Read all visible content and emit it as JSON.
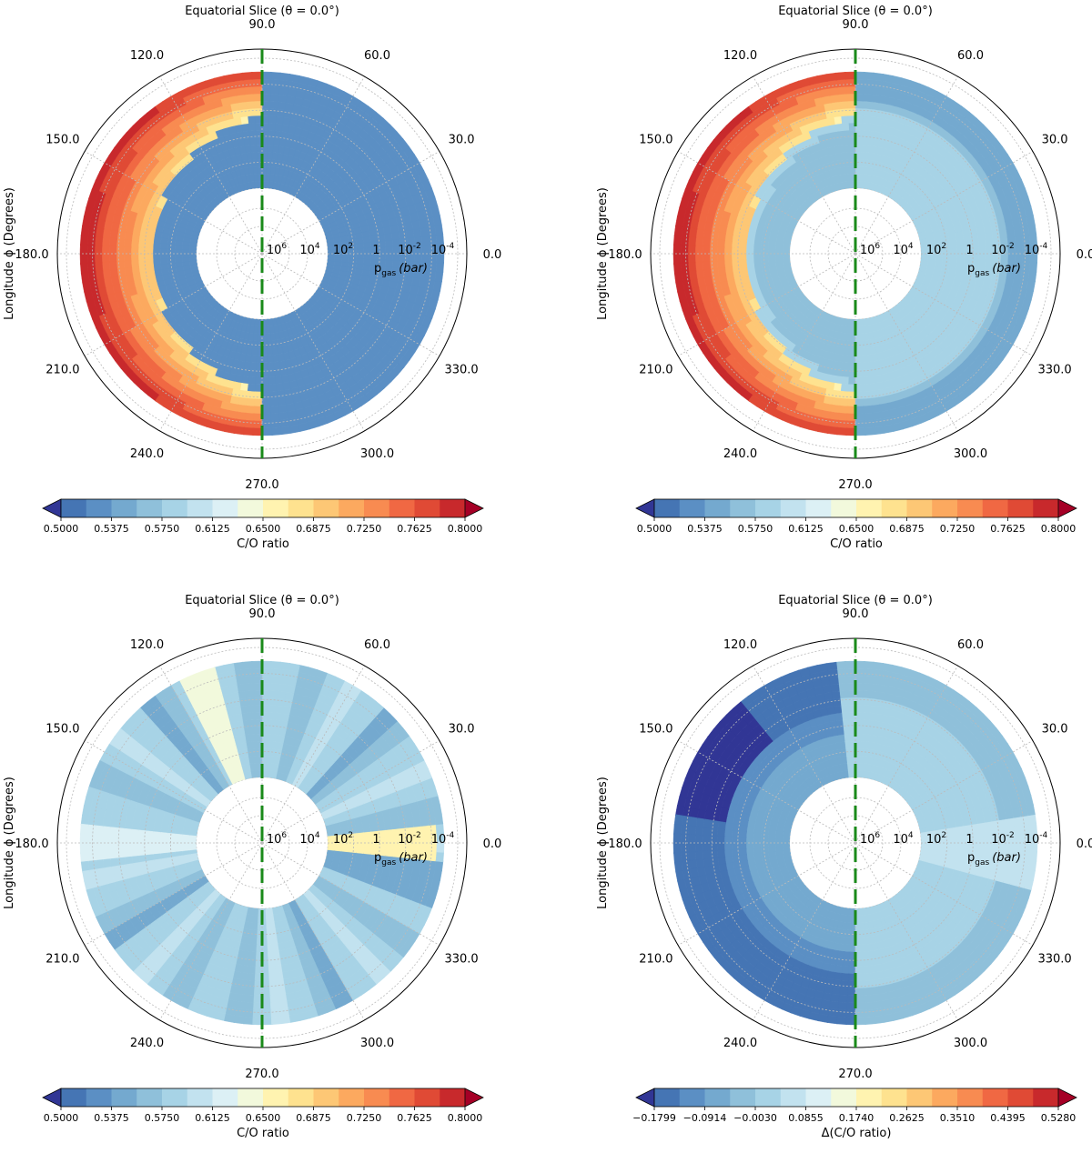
{
  "colors": {
    "palette": [
      "#313695",
      "#4575b4",
      "#5b8fc4",
      "#74a9cf",
      "#8fc0da",
      "#a7d3e6",
      "#c2e2ef",
      "#dcf0f5",
      "#f2f9dc",
      "#fff3b0",
      "#fee28f",
      "#fdc775",
      "#fca95f",
      "#f88b51",
      "#f06843",
      "#e04a35",
      "#c8292c",
      "#a50026"
    ],
    "meridian": "#1a8a1a"
  },
  "common": {
    "lon_ticks": [
      "0.0",
      "30.0",
      "60.0",
      "90.0",
      "120.0",
      "150.0",
      "180.0",
      "210.0",
      "240.0",
      "270.0",
      "300.0",
      "330.0"
    ],
    "pressure_ticks": [
      {
        "mant": "10",
        "exp": "6"
      },
      {
        "mant": "10",
        "exp": "4"
      },
      {
        "mant": "10",
        "exp": "2"
      },
      {
        "mant": "1",
        "exp": ""
      },
      {
        "mant": "10",
        "exp": "-2"
      },
      {
        "mant": "10",
        "exp": "-4"
      }
    ],
    "pressure_label_base": "p",
    "pressure_label_sub": "gas",
    "pressure_label_unit": "(bar)"
  },
  "panels": [
    {
      "title": "Equatorial Slice (θ = 0.0°)",
      "ylabel": "Longitude ϕ (Degrees)",
      "colorbar": {
        "ticks": [
          "0.5000",
          "0.5375",
          "0.5750",
          "0.6125",
          "0.6500",
          "0.6875",
          "0.7250",
          "0.7625",
          "0.8000"
        ],
        "label": "C/O ratio"
      },
      "chart_data": {
        "type": "polar contour",
        "title": "Equatorial Slice (θ = 0.0°)",
        "angular_axis": "Longitude ϕ (Degrees)",
        "radial_axis": "p_gas (bar)",
        "radial_range_log10_bar": [
          6,
          -4
        ],
        "colorbar_label": "C/O ratio",
        "colorbar_range": [
          0.5,
          0.8
        ],
        "regions": [
          {
            "lon_range": [
              90,
              270
            ],
            "description": "dayside crescent from approx 10^2 to 10^-4 bar",
            "value_range": [
              0.64,
              0.77
            ]
          },
          {
            "lon_range": [
              90,
              270
            ],
            "description": "deep nightside interior",
            "value": 0.55
          },
          {
            "lon_range": [
              -90,
              90
            ],
            "description": "eastern hemisphere",
            "value": 0.55
          }
        ],
        "meridian_marker_lon": [
          90,
          270
        ]
      }
    },
    {
      "title": "Equatorial Slice (θ = 0.0°)",
      "ylabel": "Longitude ϕ (Degrees)",
      "colorbar": {
        "ticks": [
          "0.5000",
          "0.5375",
          "0.5750",
          "0.6125",
          "0.6500",
          "0.6875",
          "0.7250",
          "0.7625",
          "0.8000"
        ],
        "label": "C/O ratio"
      },
      "chart_data": {
        "type": "polar contour",
        "title": "Equatorial Slice (θ = 0.0°)",
        "angular_axis": "Longitude ϕ (Degrees)",
        "radial_axis": "p_gas (bar)",
        "radial_range_log10_bar": [
          6,
          -4
        ],
        "colorbar_label": "C/O ratio",
        "colorbar_range": [
          0.5,
          0.8
        ],
        "regions": [
          {
            "lon_range": [
              90,
              270
            ],
            "description": "dayside crescent",
            "value_range": [
              0.64,
              0.77
            ]
          },
          {
            "lon_range": [
              -90,
              90
            ],
            "description": "inner eastern hemisphere",
            "value": 0.59
          },
          {
            "lon_range": [
              -90,
              90
            ],
            "description": "outer eastern band",
            "value": 0.565
          }
        ],
        "meridian_marker_lon": [
          90,
          270
        ]
      }
    },
    {
      "title": "Equatorial Slice (θ = 0.0°)",
      "ylabel": "Longitude ϕ (Degrees)",
      "colorbar": {
        "ticks": [
          "0.5000",
          "0.5375",
          "0.5750",
          "0.6125",
          "0.6500",
          "0.6875",
          "0.7250",
          "0.7625",
          "0.8000"
        ],
        "label": "C/O ratio"
      },
      "chart_data": {
        "type": "polar contour",
        "title": "Equatorial Slice (θ = 0.0°)",
        "angular_axis": "Longitude ϕ (Degrees)",
        "radial_axis": "p_gas (bar)",
        "radial_range_log10_bar": [
          6,
          -4
        ],
        "colorbar_label": "C/O ratio",
        "colorbar_range": [
          0.5,
          0.8
        ],
        "regions": [
          {
            "lon_range": [
              0,
              360
            ],
            "description": "radial spokes",
            "value_range": [
              0.55,
              0.65
            ]
          },
          {
            "lon": 0,
            "description": "bright streak near substellar point",
            "value": 0.66
          }
        ],
        "meridian_marker_lon": [
          90,
          270
        ]
      }
    },
    {
      "title": "Equatorial Slice (θ = 0.0°)",
      "ylabel": "Longitude ϕ (Degrees)",
      "colorbar": {
        "ticks": [
          "−0.1799",
          "−0.0914",
          "−0.0030",
          "0.0855",
          "0.1740",
          "0.2625",
          "0.3510",
          "0.4395",
          "0.5280"
        ],
        "label": "Δ(C/O ratio)"
      },
      "chart_data": {
        "type": "polar contour",
        "title": "Equatorial Slice (θ = 0.0°)",
        "angular_axis": "Longitude ϕ (Degrees)",
        "radial_axis": "p_gas (bar)",
        "radial_range_log10_bar": [
          6,
          -4
        ],
        "colorbar_label": "Δ(C/O ratio)",
        "colorbar_range": [
          -0.1799,
          0.528
        ],
        "regions": [
          {
            "lon_range": [
              120,
              270
            ],
            "description": "dayside outer region",
            "value_range": [
              -0.18,
              -0.12
            ]
          },
          {
            "lon_range": [
              -90,
              90
            ],
            "description": "eastern hemisphere",
            "value_range": [
              -0.06,
              0.0
            ]
          }
        ],
        "meridian_marker_lon": [
          90,
          270
        ]
      }
    }
  ]
}
